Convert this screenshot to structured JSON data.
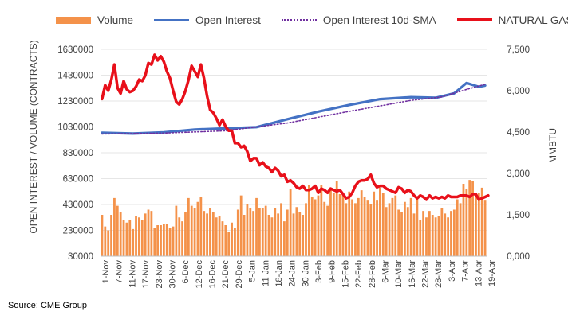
{
  "legend": {
    "volume": "Volume",
    "open_interest": "Open Interest",
    "sma": "Open Interest 10d-SMA",
    "natural_gas": "NATURAL GAS"
  },
  "source": "Source: CME Group",
  "colors": {
    "volume": "#F4924A",
    "open_interest": "#4472C4",
    "sma": "#7030A0",
    "natural_gas": "#E8101A",
    "axis_text": "#404040"
  },
  "chart_data": {
    "type": "bar",
    "title": "",
    "left_axis": {
      "label": "OPEN INTEREST / VOLUME (CONTRACTS)",
      "ticks": [
        "30000",
        "230000",
        "430000",
        "630000",
        "830000",
        "1030000",
        "1230000",
        "1430000",
        "1630000"
      ],
      "tick_values": [
        30000,
        230000,
        430000,
        630000,
        830000,
        1030000,
        1230000,
        1430000,
        1630000
      ],
      "ylim": [
        30000,
        1630000
      ]
    },
    "right_axis": {
      "label": "MMBTU",
      "ticks": [
        "0,000",
        "1,500",
        "3,000",
        "4,500",
        "6,000",
        "7,500"
      ],
      "tick_values": [
        0,
        1500,
        3000,
        4500,
        6000,
        7500
      ],
      "ylim": [
        0,
        7500
      ]
    },
    "x_ticks": [
      "1-Nov",
      "7-Nov",
      "11-Nov",
      "17-Nov",
      "23-Nov",
      "30-Nov",
      "6-Dec",
      "12-Dec",
      "16-Dec",
      "21-Dec",
      "29-Dec",
      "5-Jan",
      "11-Jan",
      "18-Jan",
      "24-Jan",
      "30-Jan",
      "3-Feb",
      "9-Feb",
      "15-Feb",
      "22-Feb",
      "28-Feb",
      "6-Mar",
      "10-Mar",
      "16-Mar",
      "22-Mar",
      "28-Mar",
      "3-Apr",
      "7-Apr",
      "13-Apr",
      "19-Apr"
    ],
    "series": [
      {
        "name": "Volume",
        "type": "bar",
        "axis": "left",
        "values": [
          350000,
          260000,
          230000,
          350000,
          480000,
          420000,
          370000,
          310000,
          290000,
          310000,
          240000,
          340000,
          330000,
          310000,
          360000,
          390000,
          380000,
          250000,
          270000,
          270000,
          280000,
          280000,
          250000,
          260000,
          420000,
          330000,
          300000,
          370000,
          480000,
          420000,
          400000,
          450000,
          490000,
          380000,
          360000,
          400000,
          370000,
          330000,
          340000,
          300000,
          270000,
          220000,
          290000,
          250000,
          390000,
          500000,
          350000,
          430000,
          400000,
          380000,
          480000,
          400000,
          400000,
          420000,
          350000,
          330000,
          400000,
          360000,
          440000,
          300000,
          390000,
          550000,
          360000,
          410000,
          370000,
          350000,
          440000,
          580000,
          490000,
          470000,
          500000,
          580000,
          450000,
          420000,
          540000,
          520000,
          610000,
          510000,
          520000,
          440000,
          530000,
          470000,
          440000,
          480000,
          540000,
          490000,
          460000,
          430000,
          530000,
          460000,
          560000,
          520000,
          410000,
          440000,
          480000,
          500000,
          390000,
          370000,
          450000,
          410000,
          480000,
          360000,
          470000,
          310000,
          380000,
          330000,
          380000,
          350000,
          330000,
          340000,
          400000,
          360000,
          330000,
          380000,
          390000,
          470000,
          440000,
          590000,
          550000,
          620000,
          610000,
          500000,
          520000,
          560000,
          460000
        ],
        "ylim": [
          30000,
          1630000
        ]
      },
      {
        "name": "Open Interest",
        "type": "line",
        "axis": "left",
        "x_index": [
          0,
          10,
          20,
          30,
          40,
          50,
          60,
          70,
          80,
          90,
          100,
          108,
          114,
          118,
          122,
          124
        ],
        "values": [
          985000,
          978000,
          988000,
          1010000,
          1018000,
          1028000,
          1090000,
          1148000,
          1200000,
          1245000,
          1260000,
          1255000,
          1290000,
          1370000,
          1340000,
          1350000
        ],
        "ylim": [
          30000,
          1630000
        ]
      },
      {
        "name": "Open Interest 10d-SMA",
        "type": "line",
        "axis": "left",
        "x_index": [
          0,
          20,
          40,
          60,
          80,
          100,
          110,
          118,
          124
        ],
        "values": [
          975000,
          982000,
          1000000,
          1060000,
          1150000,
          1235000,
          1262000,
          1320000,
          1360000
        ],
        "ylim": [
          30000,
          1630000
        ]
      },
      {
        "name": "NATURAL GAS",
        "type": "line",
        "axis": "right",
        "values": [
          5700,
          6200,
          6000,
          6400,
          6950,
          6100,
          5900,
          6350,
          6050,
          5950,
          6000,
          6150,
          6400,
          6350,
          6550,
          7000,
          6950,
          7300,
          7100,
          7250,
          7050,
          6700,
          6450,
          6000,
          5600,
          5500,
          5700,
          6000,
          6400,
          6900,
          6700,
          6500,
          6950,
          6450,
          5800,
          5300,
          5200,
          5000,
          4750,
          4950,
          4700,
          4550,
          4550,
          4100,
          4100,
          3950,
          4000,
          3800,
          3450,
          3550,
          3550,
          3300,
          3400,
          3250,
          3200,
          3050,
          3200,
          3100,
          2900,
          2950,
          2700,
          2750,
          2650,
          2500,
          2450,
          2550,
          2400,
          2400,
          2450,
          2550,
          2300,
          2450,
          2400,
          2300,
          2450,
          2400,
          2350,
          2400,
          2250,
          2100,
          2150,
          2300,
          2550,
          2700,
          2750,
          2750,
          2800,
          2950,
          2650,
          2500,
          2550,
          2550,
          2450,
          2400,
          2350,
          2300,
          2500,
          2450,
          2300,
          2400,
          2350,
          2200,
          2100,
          2200,
          2150,
          2050,
          2200,
          2100,
          2150,
          2100,
          2150,
          2100,
          2200,
          2150,
          2150,
          2150,
          2200,
          2200,
          2200,
          2150,
          2250,
          2250,
          2050,
          2100,
          2150,
          2200
        ],
        "ylim": [
          0,
          7500
        ]
      }
    ]
  }
}
